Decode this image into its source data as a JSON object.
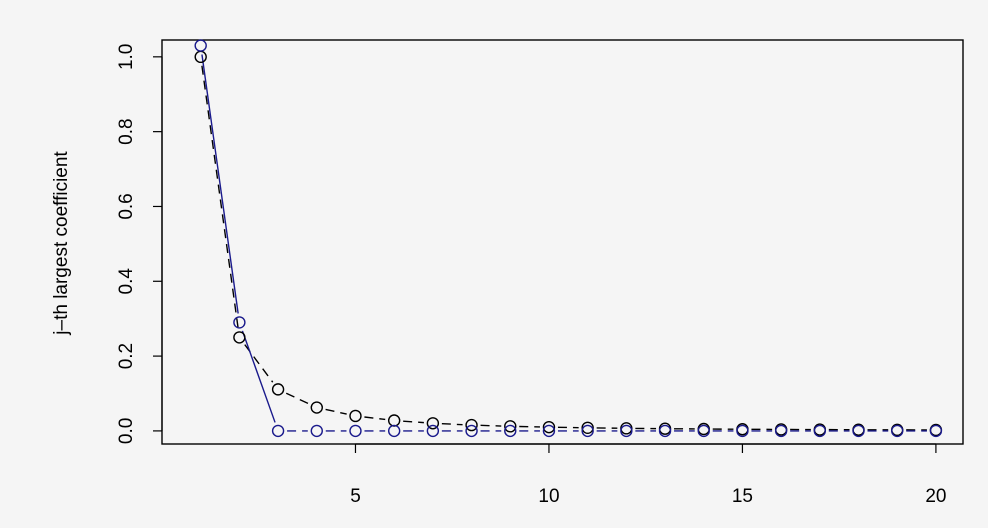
{
  "chart_data": {
    "type": "line",
    "title": "",
    "xlabel": "",
    "ylabel": "j–th largest coefficient",
    "xlim": [
      0,
      20.7
    ],
    "ylim": [
      -0.035,
      1.045
    ],
    "xticks": [
      5,
      10,
      15,
      20
    ],
    "yticks": [
      0.0,
      0.2,
      0.4,
      0.6,
      0.8,
      1.0
    ],
    "xtick_labels": [
      "5",
      "10",
      "15",
      "20"
    ],
    "ytick_labels": [
      "0.0",
      "0.2",
      "0.4",
      "0.6",
      "0.8",
      "1.0"
    ],
    "grid": false,
    "series": [
      {
        "color": "#000000",
        "marker": "circle-open",
        "line": "dashed",
        "x": [
          1,
          2,
          3,
          4,
          5,
          6,
          7,
          8,
          9,
          10,
          11,
          12,
          13,
          14,
          15,
          16,
          17,
          18,
          19,
          20
        ],
        "values": [
          1.0,
          0.25,
          0.111,
          0.0625,
          0.04,
          0.0278,
          0.0204,
          0.0156,
          0.0123,
          0.01,
          0.0083,
          0.0069,
          0.0059,
          0.0051,
          0.0044,
          0.0039,
          0.0035,
          0.0031,
          0.0028,
          0.0025
        ]
      },
      {
        "color": "#1a1a8c",
        "marker": "circle-open",
        "line": "solid-then-dashed",
        "x": [
          1,
          2,
          3,
          4,
          5,
          6,
          7,
          8,
          9,
          10,
          11,
          12,
          13,
          14,
          15,
          16,
          17,
          18,
          19,
          20
        ],
        "values": [
          1.03,
          0.29,
          0.0,
          0.0,
          0.0,
          0.0,
          0.0,
          0.0,
          0.0,
          0.0,
          0.0,
          0.0,
          0.0,
          0.0,
          0.0,
          0.0,
          0.0,
          0.0,
          0.0,
          0.0
        ]
      }
    ]
  }
}
